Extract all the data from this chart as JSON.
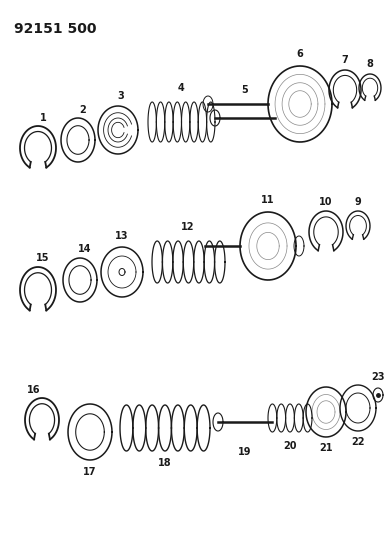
{
  "title": "92151 500",
  "bg_color": "#ffffff",
  "line_color": "#1a1a1a",
  "gray_color": "#888888",
  "fig_w": 3.88,
  "fig_h": 5.33,
  "dpi": 100
}
